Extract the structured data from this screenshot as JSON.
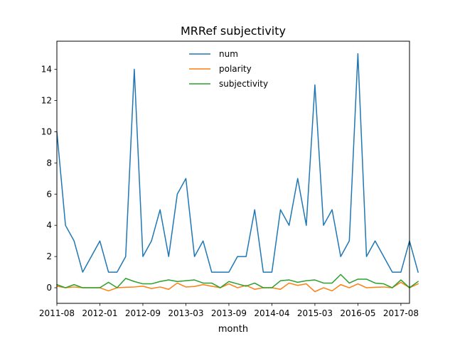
{
  "chart_data": {
    "type": "line",
    "title": "MRRef subjectivity",
    "xlabel": "month",
    "ylabel": "",
    "xlim": [
      0,
      41
    ],
    "ylim": [
      -1,
      15.8
    ],
    "y_ticks": [
      0,
      2,
      4,
      6,
      8,
      10,
      12,
      14
    ],
    "x_ticks": [
      {
        "pos": 0,
        "label": "2011-08"
      },
      {
        "pos": 5,
        "label": "2012-01"
      },
      {
        "pos": 10,
        "label": "2012-09"
      },
      {
        "pos": 15,
        "label": "2013-03"
      },
      {
        "pos": 20,
        "label": "2013-09"
      },
      {
        "pos": 25,
        "label": "2014-04"
      },
      {
        "pos": 30,
        "label": "2015-03"
      },
      {
        "pos": 35,
        "label": "2016-05"
      },
      {
        "pos": 40,
        "label": "2017-08"
      }
    ],
    "legend_position": "top-center",
    "series": [
      {
        "name": "num",
        "color": "#1f77b4",
        "values": [
          10,
          4,
          3,
          1,
          2,
          3,
          1,
          1,
          2,
          14,
          2,
          3,
          5,
          2,
          6,
          7,
          2,
          3,
          1,
          1,
          1,
          2,
          2,
          5,
          1,
          1,
          5,
          4,
          7,
          4,
          13,
          4,
          5,
          2,
          3,
          15,
          2,
          3,
          2,
          1,
          1,
          3,
          1
        ]
      },
      {
        "name": "polarity",
        "color": "#ff7f0e",
        "values": [
          0.1,
          0.0,
          0.05,
          0.0,
          0.0,
          0.0,
          -0.2,
          0.0,
          0.03,
          0.05,
          0.1,
          -0.05,
          0.05,
          -0.1,
          0.3,
          0.05,
          0.08,
          0.2,
          0.1,
          0.0,
          0.25,
          0.0,
          0.15,
          -0.1,
          0.0,
          0.0,
          -0.1,
          0.3,
          0.15,
          0.25,
          -0.25,
          0.0,
          -0.2,
          0.2,
          0.0,
          0.25,
          0.0,
          0.03,
          0.05,
          0.0,
          0.35,
          0.0,
          0.25
        ]
      },
      {
        "name": "subjectivity",
        "color": "#2ca02c",
        "values": [
          0.2,
          0.0,
          0.2,
          0.0,
          0.0,
          0.0,
          0.35,
          0.0,
          0.6,
          0.4,
          0.25,
          0.25,
          0.4,
          0.5,
          0.4,
          0.45,
          0.5,
          0.3,
          0.3,
          0.0,
          0.4,
          0.25,
          0.1,
          0.3,
          0.0,
          0.0,
          0.45,
          0.5,
          0.35,
          0.45,
          0.5,
          0.3,
          0.3,
          0.85,
          0.3,
          0.55,
          0.55,
          0.3,
          0.25,
          0.0,
          0.5,
          0.0,
          0.4
        ]
      }
    ]
  }
}
